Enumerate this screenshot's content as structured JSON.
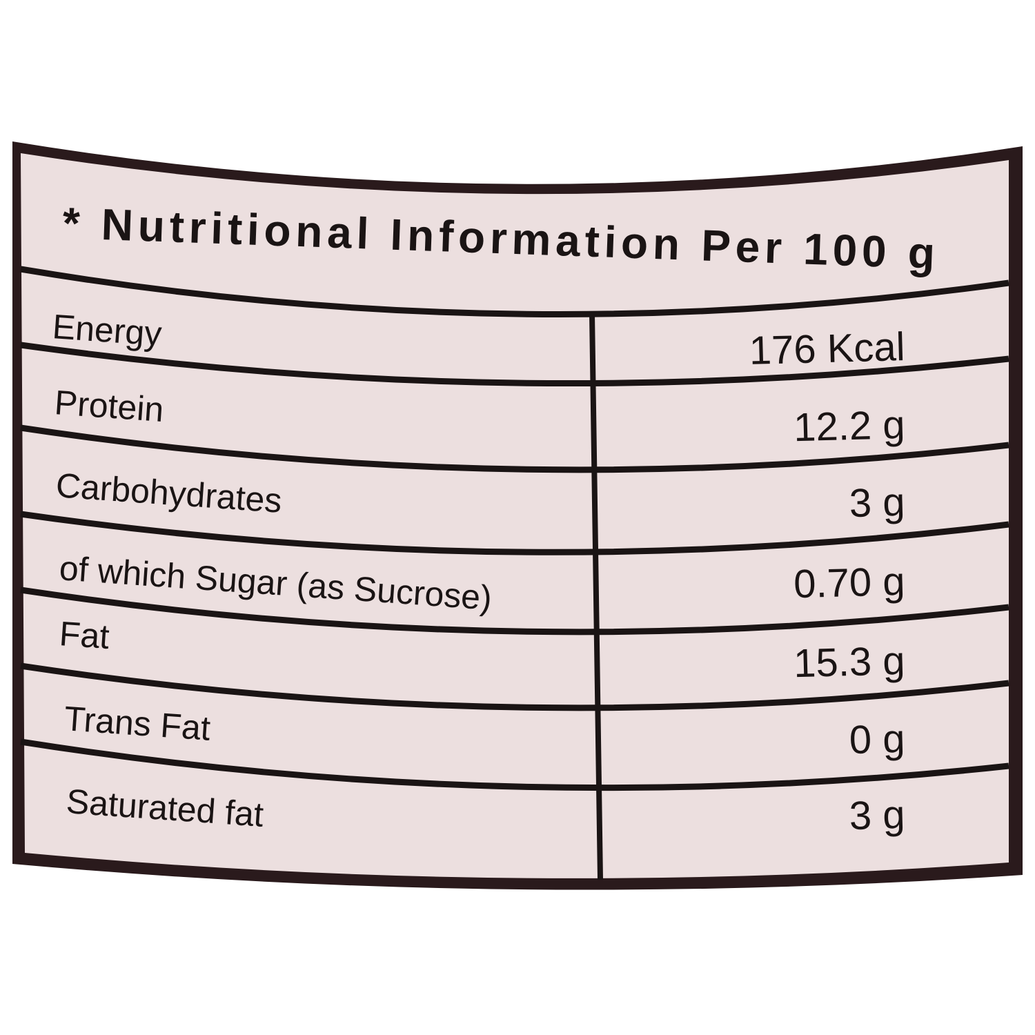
{
  "title": "* Nutritional Information Per 100 g",
  "table": {
    "rows": [
      [
        "Energy",
        "176 Kcal"
      ],
      [
        "Protein",
        "12.2 g"
      ],
      [
        "Carbohydrates",
        "3 g"
      ],
      [
        "of which Sugar (as Sucrose)",
        "0.70 g"
      ],
      [
        "Fat",
        "15.3 g"
      ],
      [
        "Trans Fat",
        "0 g"
      ],
      [
        "Saturated fat",
        "3 g"
      ]
    ]
  }
}
